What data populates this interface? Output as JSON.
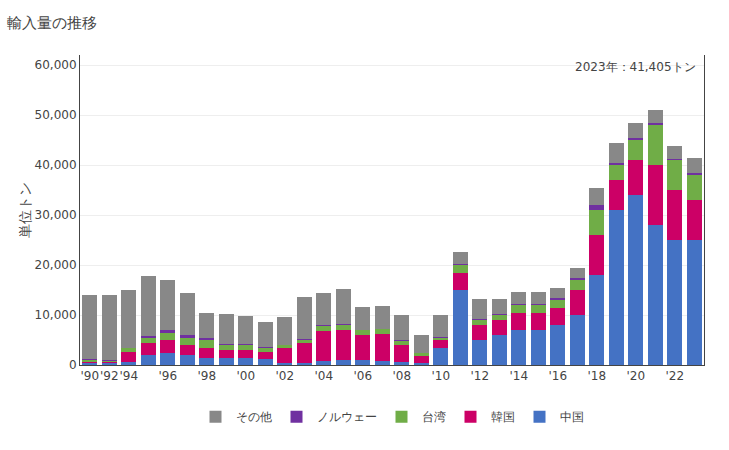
{
  "chart_data": {
    "type": "bar",
    "title": "輸入量の推移",
    "ylabel": "単位トン",
    "annotation": "2023年：41,405トン",
    "stacked": true,
    "grid": true,
    "legend": "bottom",
    "categories": [
      "'90",
      "'92",
      "'94",
      null,
      "'96",
      null,
      "'98",
      null,
      "'00",
      null,
      "'02",
      null,
      "'04",
      null,
      "'06",
      null,
      "'08",
      null,
      "'10",
      null,
      "'12",
      null,
      "'14",
      null,
      "'16",
      null,
      "'18",
      null,
      "'20",
      null,
      "'22",
      null
    ],
    "series": [
      {
        "name": "中国",
        "color": "#4472C4",
        "values": [
          500,
          400,
          700,
          2000,
          2500,
          2000,
          1500,
          1500,
          1500,
          1200,
          500,
          500,
          800,
          1000,
          1000,
          800,
          600,
          400,
          3500,
          15000,
          5000,
          6000,
          7000,
          7000,
          8000,
          10000,
          18000,
          31000,
          34000,
          28000,
          25000,
          25000
        ]
      },
      {
        "name": "韓国",
        "color": "#CC0066",
        "values": [
          200,
          200,
          2000,
          2500,
          2500,
          2000,
          2000,
          1500,
          1500,
          1500,
          3000,
          4000,
          6000,
          6000,
          5000,
          5500,
          3500,
          1500,
          1500,
          3500,
          3000,
          3000,
          3500,
          3500,
          3500,
          5000,
          8000,
          6000,
          7000,
          12000,
          10000,
          8000
        ]
      },
      {
        "name": "台湾",
        "color": "#70AD47",
        "values": [
          300,
          300,
          700,
          1000,
          1500,
          1500,
          1500,
          1000,
          1000,
          800,
          500,
          500,
          1000,
          1000,
          1000,
          900,
          800,
          500,
          500,
          1500,
          1000,
          1000,
          1500,
          1500,
          1500,
          2000,
          5000,
          3000,
          4000,
          8000,
          6000,
          5000
        ]
      },
      {
        "name": "ノルウェー",
        "color": "#7030A0",
        "values": [
          200,
          100,
          100,
          300,
          500,
          500,
          500,
          300,
          300,
          100,
          100,
          200,
          200,
          200,
          100,
          100,
          100,
          100,
          100,
          200,
          200,
          200,
          200,
          200,
          500,
          500,
          1000,
          500,
          500,
          500,
          300,
          500
        ]
      },
      {
        "name": "その他",
        "color": "#888888",
        "values": [
          12800,
          13000,
          11500,
          12000,
          10000,
          8500,
          5000,
          6000,
          5500,
          5000,
          5500,
          8500,
          6500,
          7000,
          4500,
          4500,
          5000,
          3500,
          4500,
          2500,
          4000,
          3000,
          2500,
          2500,
          2000,
          2000,
          3500,
          4000,
          3000,
          2500,
          2500,
          2905
        ]
      }
    ],
    "ylim": [
      0,
      62000
    ],
    "yticks": [
      0,
      {
        "value": 10000,
        "label": "10,000"
      },
      {
        "value": 20000,
        "label": "20,000"
      },
      {
        "value": 30000,
        "label": "30,000"
      },
      {
        "value": 40000,
        "label": "40,000"
      },
      {
        "value": 50000,
        "label": "50,000"
      },
      {
        "value": 60000,
        "label": "60,000"
      }
    ]
  }
}
